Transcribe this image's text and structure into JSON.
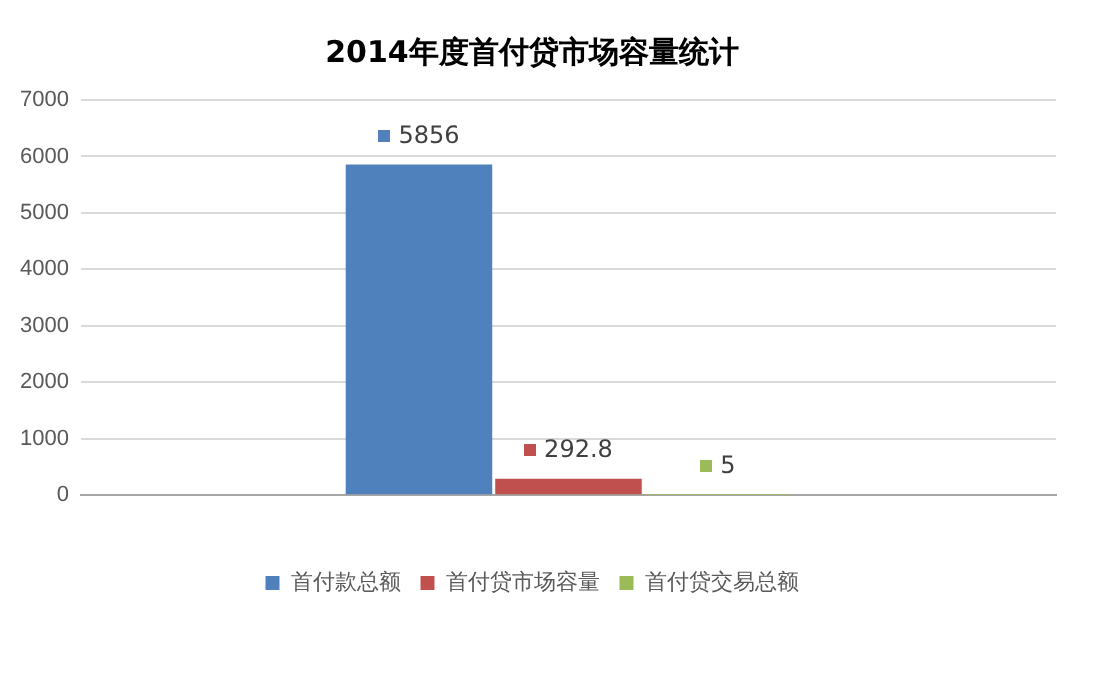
{
  "chart_data": {
    "type": "bar",
    "title": "2014年度首付贷市场容量统计",
    "categories": [
      null
    ],
    "series": [
      {
        "name": "首付款总额",
        "color": "#4f81bd",
        "values": [
          5856
        ]
      },
      {
        "name": "首付贷市场容量",
        "color": "#c0504d",
        "values": [
          292.8
        ]
      },
      {
        "name": "首付贷交易总额",
        "color": "#9bbb59",
        "values": [
          5
        ]
      }
    ],
    "ylim": [
      0,
      7000
    ],
    "yticks": [
      0,
      1000,
      2000,
      3000,
      4000,
      5000,
      6000,
      7000
    ],
    "grid": "y",
    "legend": "bottom",
    "data_labels": true
  }
}
